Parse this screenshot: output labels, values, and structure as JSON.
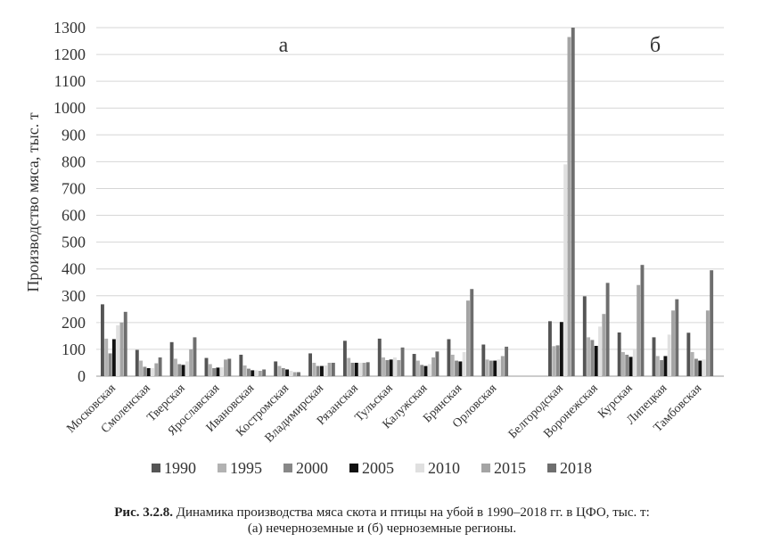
{
  "chart_data": {
    "type": "bar",
    "ylabel": "Производство мяса, тыс. т",
    "ylim": [
      0,
      1300
    ],
    "yticks": [
      0,
      100,
      200,
      300,
      400,
      500,
      600,
      700,
      800,
      900,
      1000,
      1100,
      1200,
      1300
    ],
    "grid": true,
    "legend_position": "bottom",
    "series_colors": [
      "#555555",
      "#b2b2b2",
      "#888888",
      "#111111",
      "#e0e0e0",
      "#a4a4a4",
      "#6e6e6e"
    ],
    "panel_labels": [
      "а",
      "б"
    ],
    "groups": [
      {
        "label": "а",
        "categories": [
          "Московская",
          "Смоленская",
          "Тверская",
          "Ярославская",
          "Ивановская",
          "Костромская",
          "Владимирская",
          "Рязанская",
          "Тульская",
          "Калужская",
          "Брянская",
          "Орловская"
        ]
      },
      {
        "label": "б",
        "categories": [
          "Белгородская",
          "Воронежская",
          "Курская",
          "Липецкая",
          "Тамбовская"
        ]
      }
    ],
    "categories": [
      "Московская",
      "Смоленская",
      "Тверская",
      "Ярославская",
      "Ивановская",
      "Костромская",
      "Владимирская",
      "Рязанская",
      "Тульская",
      "Калужская",
      "Брянская",
      "Орловская",
      "Белгородская",
      "Воронежская",
      "Курская",
      "Липецкая",
      "Тамбовская"
    ],
    "series": [
      {
        "name": "1990",
        "values": [
          268,
          98,
          127,
          68,
          80,
          55,
          85,
          132,
          140,
          83,
          138,
          118,
          205,
          298,
          163,
          145,
          162
        ]
      },
      {
        "name": "1995",
        "values": [
          140,
          58,
          65,
          45,
          40,
          38,
          50,
          68,
          70,
          58,
          80,
          62,
          112,
          145,
          90,
          75,
          90
        ]
      },
      {
        "name": "2000",
        "values": [
          85,
          35,
          45,
          30,
          28,
          30,
          38,
          50,
          60,
          42,
          58,
          58,
          115,
          135,
          80,
          60,
          65
        ]
      },
      {
        "name": "2005",
        "values": [
          138,
          30,
          42,
          32,
          22,
          25,
          38,
          50,
          62,
          38,
          55,
          58,
          202,
          113,
          72,
          75,
          58
        ]
      },
      {
        "name": "2010",
        "values": [
          190,
          30,
          55,
          33,
          22,
          20,
          40,
          50,
          70,
          45,
          90,
          62,
          790,
          185,
          98,
          155,
          62
        ]
      },
      {
        "name": "2015",
        "values": [
          200,
          48,
          100,
          62,
          20,
          15,
          50,
          50,
          60,
          70,
          282,
          75,
          1265,
          232,
          340,
          245,
          245
        ]
      },
      {
        "name": "2018",
        "values": [
          240,
          70,
          145,
          65,
          25,
          15,
          50,
          52,
          107,
          92,
          325,
          110,
          1300,
          348,
          415,
          287,
          395
        ]
      }
    ]
  },
  "caption": {
    "bold": "Рис. 3.2.8.",
    "line1": " Динамика производства мяса скота и птицы на убой в 1990–2018 гг. в ЦФО, тыс. т:",
    "line2": "(а) нечерноземные и (б) черноземные регионы."
  }
}
